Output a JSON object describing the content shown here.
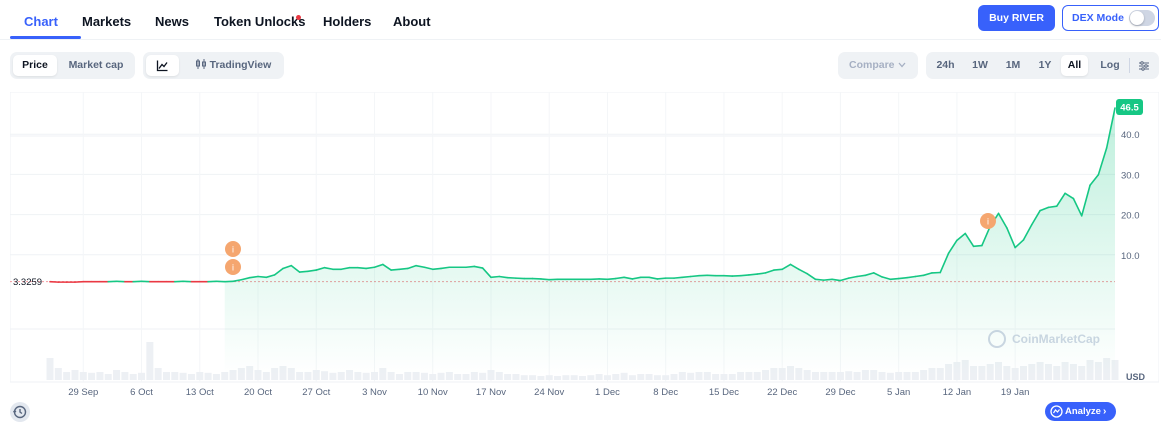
{
  "nav": {
    "tabs": [
      "Chart",
      "Markets",
      "News",
      "Token Unlocks",
      "Holders",
      "About"
    ],
    "active_tab": "Chart",
    "buy_label": "Buy RIVER",
    "dex_label": "DEX Mode",
    "dex_enabled": false
  },
  "controls": {
    "metric_tabs": [
      "Price",
      "Market cap"
    ],
    "active_metric": "Price",
    "chart_style": [
      "line-chart-icon",
      "TradingView"
    ],
    "compare_label": "Compare",
    "ranges": [
      "24h",
      "1W",
      "1M",
      "1Y",
      "All",
      "Log"
    ],
    "active_range": "All"
  },
  "chart_data": {
    "type": "area",
    "ylim": [
      0,
      50
    ],
    "y_ticks": [
      "10.0",
      "20.0",
      "30.0",
      "40.0"
    ],
    "x_ticks": [
      "29 Sep",
      "6 Oct",
      "13 Oct",
      "20 Oct",
      "27 Oct",
      "3 Nov",
      "10 Nov",
      "17 Nov",
      "24 Nov",
      "1 Dec",
      "8 Dec",
      "15 Dec",
      "22 Dec",
      "29 Dec",
      "5 Jan",
      "12 Jan",
      "19 Jan"
    ],
    "x_start_label": "29 Sep",
    "x_points_per_day": 1,
    "first_day_offset": -4,
    "values": [
      3.3,
      3.2,
      3.2,
      3.2,
      3.3,
      3.3,
      3.3,
      3.3,
      3.4,
      3.3,
      3.3,
      3.4,
      3.3,
      3.3,
      3.3,
      3.3,
      3.4,
      3.3,
      3.3,
      3.3,
      3.4,
      3.3,
      3.4,
      3.8,
      4.3,
      4.6,
      4.4,
      5.0,
      6.6,
      7.3,
      5.7,
      5.9,
      6.2,
      6.8,
      6.4,
      6.4,
      6.8,
      6.8,
      6.6,
      6.9,
      7.6,
      6.2,
      6.4,
      6.6,
      7.3,
      6.9,
      6.4,
      6.6,
      6.9,
      6.9,
      6.9,
      7.1,
      6.7,
      4.4,
      4.6,
      4.3,
      4.2,
      4.1,
      4.1,
      4.0,
      3.8,
      3.9,
      3.9,
      3.9,
      3.9,
      3.9,
      4.0,
      3.9,
      4.1,
      4.4,
      4.0,
      4.4,
      4.4,
      4.0,
      4.2,
      4.2,
      4.4,
      4.6,
      4.8,
      4.9,
      4.8,
      4.8,
      4.7,
      4.8,
      5.0,
      5.2,
      5.5,
      6.2,
      6.4,
      7.6,
      6.4,
      5.3,
      3.9,
      3.7,
      3.9,
      3.6,
      4.2,
      4.6,
      4.9,
      5.5,
      4.5,
      3.9,
      4.1,
      4.3,
      4.6,
      4.9,
      5.5,
      5.6,
      10.4,
      13.6,
      15.3,
      12.1,
      12.3,
      17.1,
      20.3,
      16.7,
      11.8,
      13.7,
      17.5,
      21.0,
      21.8,
      22.1,
      25.3,
      24.0,
      19.7,
      27.3,
      29.9,
      36.6,
      46.5
    ],
    "current_value_label": "46.5",
    "baseline_label": "3.3259",
    "baseline_value": 3.3259,
    "events": [
      {
        "x_label": "17 Oct",
        "y": 11.2,
        "label": "i"
      },
      {
        "x_label": "17 Oct",
        "y": 6.9,
        "label": "i"
      },
      {
        "x_label": "9 Jan",
        "y": 18.0,
        "label": "i"
      }
    ],
    "currency_label": "USD",
    "watermark": "CoinMarketCap",
    "colors": {
      "up": "#16c784",
      "down": "#ea3943",
      "event": "#f5a66f",
      "grid": "#eff2f5"
    }
  },
  "footer": {
    "analyze_label": "Analyze",
    "history_icon": "history-icon"
  }
}
